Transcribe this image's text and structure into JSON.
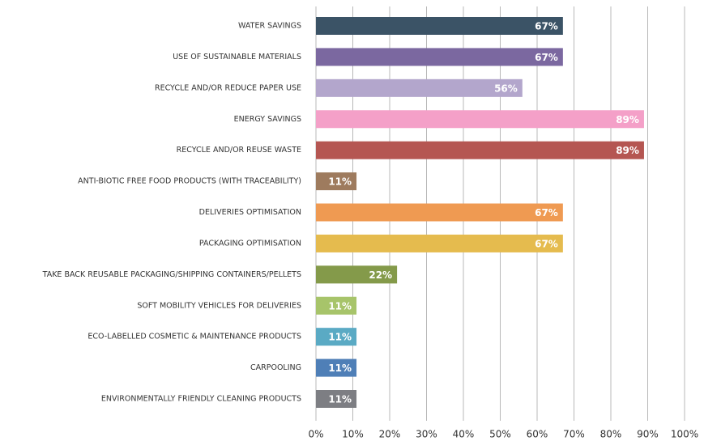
{
  "chart_data": {
    "type": "barh",
    "categories": [
      "WATER SAVINGS",
      "USE OF SUSTAINABLE MATERIALS",
      "RECYCLE AND/OR REDUCE PAPER USE",
      "ENERGY SAVINGS",
      "RECYCLE AND/OR REUSE WASTE",
      "ANTI-BIOTIC FREE FOOD PRODUCTS (WITH TRACEABILITY)",
      "DELIVERIES OPTIMISATION",
      "PACKAGING OPTIMISATION",
      "TAKE BACK REUSABLE PACKAGING/SHIPPING CONTAINERS/PELLETS",
      "SOFT MOBILITY VEHICLES FOR DELIVERIES",
      "ECO-LABELLED COSMETIC & MAINTENANCE PRODUCTS",
      "CARPOOLING",
      "ENVIRONMENTALLY FRIENDLY CLEANING PRODUCTS"
    ],
    "values": [
      67,
      67,
      56,
      89,
      89,
      11,
      67,
      67,
      22,
      11,
      11,
      11,
      11
    ],
    "value_labels": [
      "67%",
      "67%",
      "56%",
      "89%",
      "89%",
      "11%",
      "67%",
      "67%",
      "22%",
      "11%",
      "11%",
      "11%",
      "11%"
    ],
    "colors": [
      "#3b5366",
      "#7b68a0",
      "#b3a6cc",
      "#f4a0c8",
      "#b55652",
      "#9e7b5e",
      "#ef9a52",
      "#e5bb4e",
      "#849a4a",
      "#a7c46a",
      "#5aaac4",
      "#4f7fb7",
      "#7d7e83"
    ],
    "xlim": [
      0,
      100
    ],
    "xticks": [
      {
        "value": 0,
        "label": "0%"
      },
      {
        "value": 10,
        "label": "10%"
      },
      {
        "value": 20,
        "label": "20%"
      },
      {
        "value": 30,
        "label": "30%"
      },
      {
        "value": 40,
        "label": "40%"
      },
      {
        "value": 50,
        "label": "50%"
      },
      {
        "value": 60,
        "label": "60%"
      },
      {
        "value": 70,
        "label": "70%"
      },
      {
        "value": 80,
        "label": "80%"
      },
      {
        "value": 90,
        "label": "90%"
      },
      {
        "value": 100,
        "label": "100%"
      }
    ],
    "grid": true
  }
}
